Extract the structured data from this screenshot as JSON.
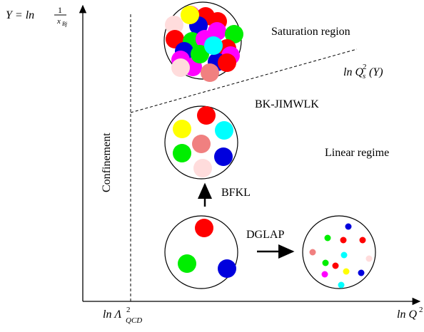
{
  "axes": {
    "y_label_prefix": "Y = ln",
    "y_label_num": "1",
    "y_label_den": "x",
    "y_label_den_sub": "Bj",
    "x_label": "ln Q",
    "x_label_sup": "2",
    "x_tick_prefix": "ln Λ",
    "x_tick_sup": "2",
    "x_tick_sub": "QCD"
  },
  "labels": {
    "confinement": "Confinement",
    "saturation_region": "Saturation region",
    "saturation_line_prefix": "ln Q",
    "saturation_line_sup": "2",
    "saturation_line_sub": "s",
    "saturation_line_suffix": "(Y)",
    "bk_jimwlk": "BK-JIMWLK",
    "linear_regime": "Linear regime",
    "bfkl": "BFKL",
    "dglap": "DGLAP"
  },
  "colors": {
    "red": "#ff0000",
    "green": "#00ee00",
    "blue": "#0000dd",
    "yellow": "#ffff00",
    "cyan": "#00ffff",
    "magenta": "#ff00ff",
    "salmon": "#f08080",
    "pink": "#ffdcdc",
    "axis": "#000000"
  }
}
